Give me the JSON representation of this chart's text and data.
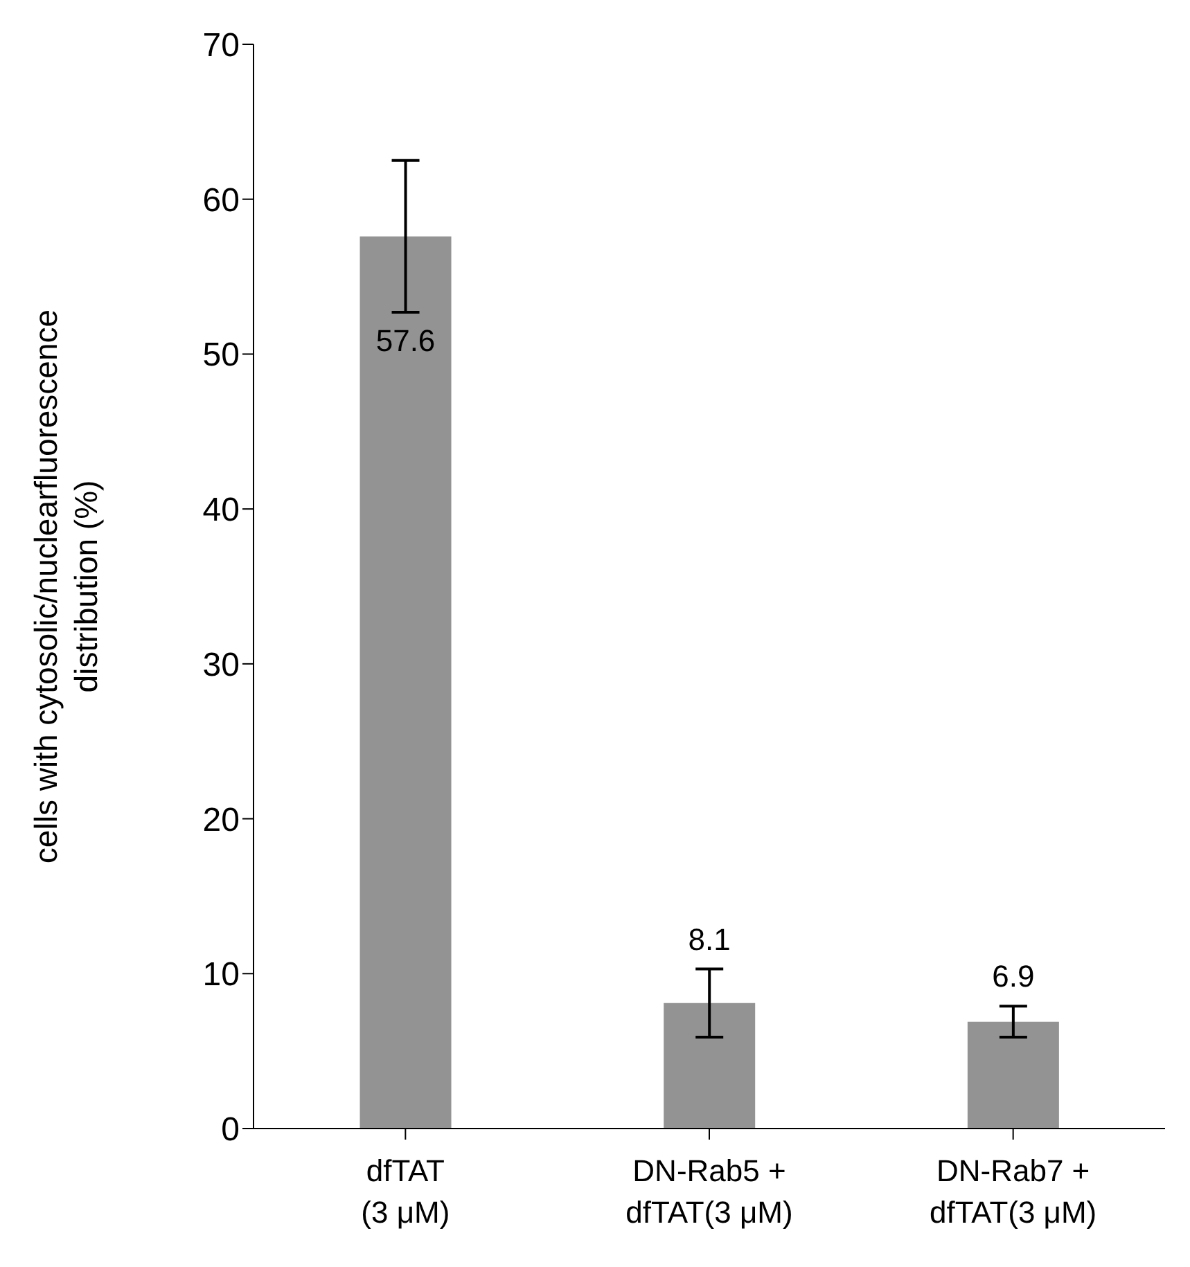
{
  "chart_data": {
    "type": "bar",
    "ylabel": "cells with cytosolic/nuclearfluorescence\ndistribution (%)",
    "categories": [
      "dfTAT\n(3 μM)",
      "DN-Rab5 +\ndfTAT(3 μM)",
      "DN-Rab7 +\ndfTAT(3 μM)"
    ],
    "values": [
      57.6,
      8.1,
      6.9
    ],
    "errors": [
      4.9,
      2.2,
      1.0
    ],
    "color": "#939393",
    "ylim": [
      0,
      70
    ],
    "yticks": [
      0,
      10,
      20,
      30,
      40,
      50,
      60,
      70
    ],
    "data_labels": true,
    "grid": false
  }
}
